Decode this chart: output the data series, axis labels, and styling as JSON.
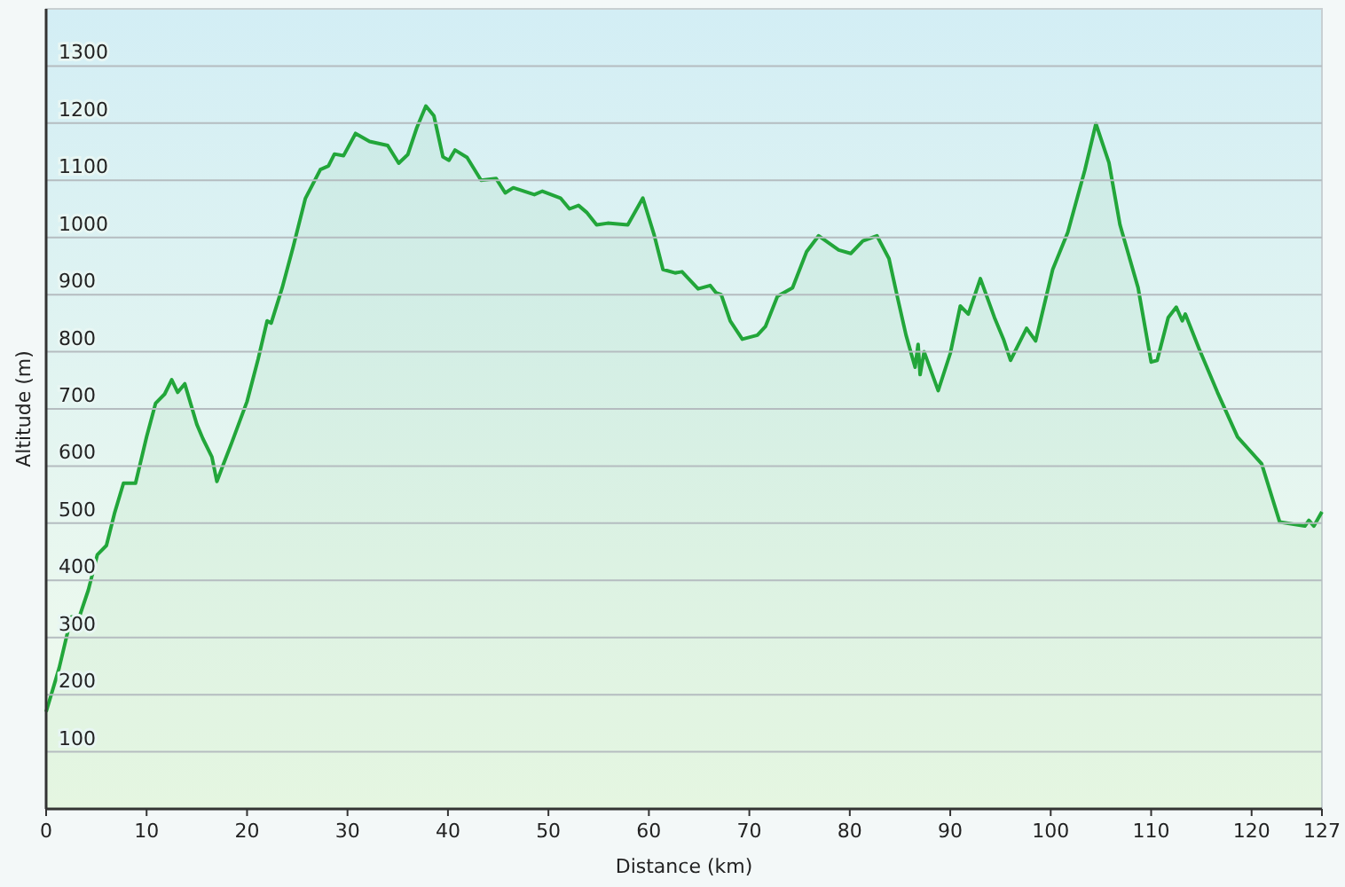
{
  "chart_data": {
    "type": "area",
    "xlabel": "Distance  (km)",
    "ylabel": "Altitude (m)",
    "xlim": [
      0,
      127
    ],
    "ylim": [
      0,
      1400
    ],
    "xticks": [
      0,
      10,
      20,
      30,
      40,
      50,
      60,
      70,
      80,
      90,
      100,
      110,
      120,
      127
    ],
    "yticks": [
      100,
      200,
      300,
      400,
      500,
      600,
      700,
      800,
      900,
      1000,
      1100,
      1200,
      1300
    ],
    "grid": "y",
    "series": [
      {
        "color": "#22a63a",
        "x": [
          0,
          1.3,
          2.5,
          3.3,
          4.2,
          5.1,
          6.0,
          6.8,
          7.7,
          8.9,
          10.0,
          10.9,
          11.8,
          12.5,
          13.1,
          13.8,
          15.0,
          15.6,
          16.5,
          17.0,
          17.6,
          18.5,
          20.0,
          21.1,
          22.0,
          22.4,
          23.5,
          24.6,
          25.8,
          27.3,
          28.1,
          28.7,
          29.6,
          30.8,
          32.2,
          34.0,
          35.1,
          36.0,
          36.9,
          37.8,
          38.6,
          39.5,
          40.1,
          40.7,
          41.9,
          43.3,
          44.8,
          45.7,
          46.5,
          48.6,
          49.4,
          51.2,
          52.1,
          53.0,
          53.8,
          54.8,
          55.9,
          57.9,
          59.4,
          60.5,
          61.4,
          62.6,
          63.3,
          64.9,
          66.1,
          66.7,
          67.2,
          68.1,
          69.3,
          70.8,
          71.6,
          72.8,
          74.3,
          75.7,
          76.9,
          78.9,
          80.1,
          81.3,
          82.7,
          83.9,
          84.8,
          85.6,
          86.5,
          86.8,
          87.0,
          87.4,
          88.8,
          90.0,
          91.0,
          91.8,
          93.0,
          94.4,
          95.3,
          96.0,
          96.6,
          97.6,
          98.5,
          100.2,
          101.7,
          103.4,
          104.5,
          105.8,
          106.9,
          108.7,
          110.0,
          110.6,
          111.7,
          112.5,
          113.1,
          113.4,
          114.8,
          116.6,
          118.6,
          121.0,
          122.8,
          125.3,
          125.7,
          126.2,
          127
        ],
        "values": [
          170,
          247,
          336,
          336,
          383,
          445,
          461,
          517,
          570,
          570,
          651,
          710,
          726,
          751,
          729,
          744,
          673,
          648,
          616,
          573,
          601,
          642,
          713,
          787,
          854,
          850,
          912,
          984,
          1068,
          1119,
          1125,
          1146,
          1143,
          1182,
          1168,
          1161,
          1130,
          1145,
          1192,
          1230,
          1213,
          1141,
          1135,
          1153,
          1140,
          1100,
          1103,
          1078,
          1087,
          1075,
          1081,
          1069,
          1050,
          1056,
          1044,
          1022,
          1025,
          1022,
          1069,
          1006,
          944,
          938,
          940,
          910,
          916,
          903,
          900,
          854,
          822,
          829,
          844,
          897,
          912,
          975,
          1003,
          978,
          972,
          994,
          1003,
          963,
          891,
          829,
          773,
          813,
          760,
          800,
          732,
          797,
          880,
          866,
          928,
          860,
          822,
          785,
          806,
          841,
          819,
          944,
          1009,
          1118,
          1199,
          1131,
          1022,
          912,
          782,
          785,
          860,
          878,
          854,
          866,
          804,
          729,
          651,
          604,
          502,
          495,
          505,
          495,
          520
        ]
      }
    ]
  }
}
